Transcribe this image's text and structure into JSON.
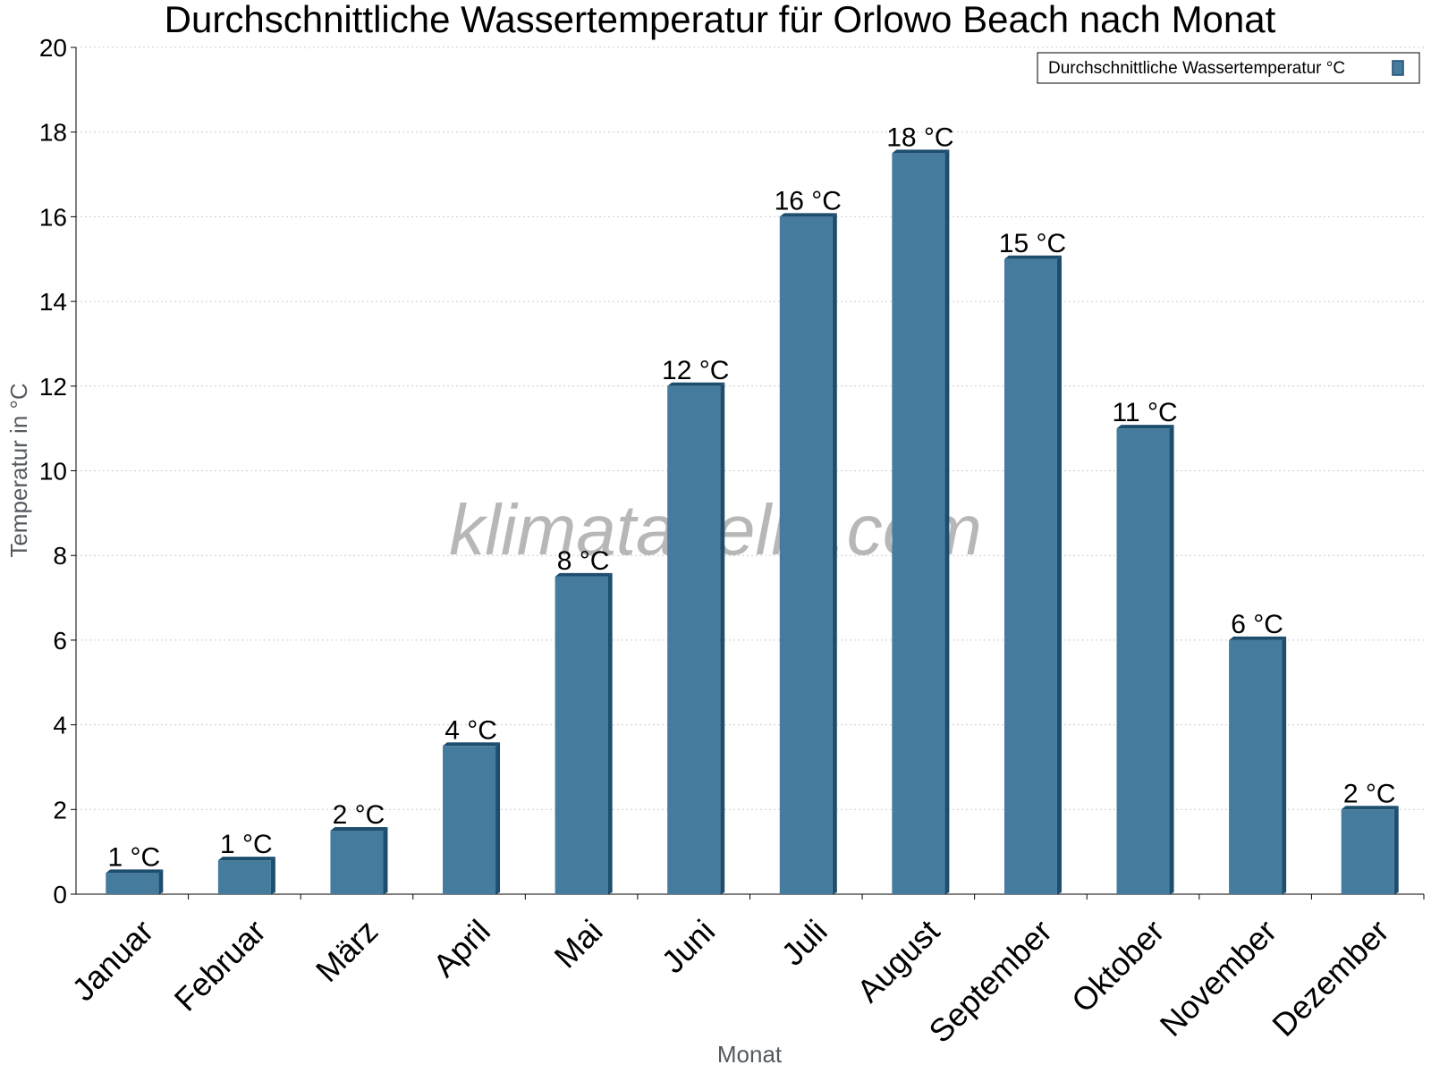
{
  "chart_data": {
    "type": "bar",
    "title": "Durchschnittliche Wassertemperatur für Orlowo Beach nach Monat",
    "xlabel": "Monat",
    "ylabel": "Temperatur in °C",
    "categories": [
      "Januar",
      "Februar",
      "März",
      "April",
      "Mai",
      "Juni",
      "Juli",
      "August",
      "September",
      "Oktober",
      "November",
      "Dezember"
    ],
    "series": [
      {
        "name": "Durchschnittliche Wassertemperatur °C",
        "values": [
          0.5,
          0.8,
          1.5,
          3.5,
          7.5,
          12.0,
          16.0,
          17.5,
          15.0,
          11.0,
          6.0,
          2.0
        ],
        "labels": [
          "1 °C",
          "1 °C",
          "2 °C",
          "4 °C",
          "8 °C",
          "12 °C",
          "16 °C",
          "18 °C",
          "15 °C",
          "11 °C",
          "6 °C",
          "2 °C"
        ]
      }
    ],
    "ylim": [
      0,
      20
    ],
    "yticks": [
      "0",
      "2",
      "4",
      "6",
      "8",
      "10",
      "12",
      "14",
      "16",
      "18",
      "20"
    ],
    "grid": true,
    "legend_position": "top-right",
    "watermark": "klimatabelle.com",
    "colors": {
      "bar": "#457b9d",
      "bar_side": "#1d4e6e",
      "grid": "#cccccc",
      "axis": "#000000"
    }
  }
}
